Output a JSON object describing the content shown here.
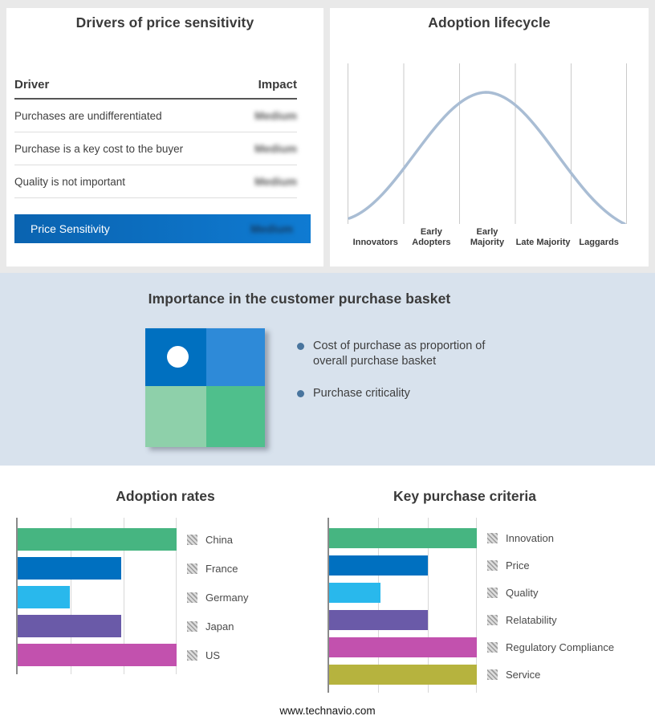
{
  "page": {
    "footer_url": "www.technavio.com",
    "background": "#e9e9e9",
    "band_background": "#d8e2ed",
    "accent_blue": "#0070c0"
  },
  "drivers_panel": {
    "title": "Drivers of price sensitivity",
    "columns": {
      "driver": "Driver",
      "impact": "Impact"
    },
    "impact_values_blurred": true,
    "rows": [
      {
        "driver": "Purchases are undifferentiated",
        "impact": "Medium"
      },
      {
        "driver": "Purchase is a key cost to the buyer",
        "impact": "Medium"
      },
      {
        "driver": "Quality is not important",
        "impact": "Medium"
      }
    ],
    "summary_row": {
      "label": "Price Sensitivity",
      "impact": "Medium"
    }
  },
  "lifecycle_panel": {
    "title": "Adoption lifecycle",
    "stages": [
      "Innovators",
      "Early Adopters",
      "Early Majority",
      "Late Majority",
      "Laggards"
    ],
    "curve_color": "#a9bdd4"
  },
  "basket_panel": {
    "title": "Importance in the customer purchase basket",
    "bullets": [
      "Cost of purchase as proportion of overall purchase basket",
      "Purchase criticality"
    ],
    "quadrant_colors": [
      "#0070c0",
      "#2e8ad8",
      "#8ed0aa",
      "#4fbf8c"
    ]
  },
  "chart_data": [
    {
      "type": "table",
      "title": "Drivers of price sensitivity",
      "columns": [
        "Driver",
        "Impact"
      ],
      "rows": [
        [
          "Purchases are undifferentiated",
          "Medium"
        ],
        [
          "Purchase is a key cost to the buyer",
          "Medium"
        ],
        [
          "Quality is not important",
          "Medium"
        ],
        [
          "Price Sensitivity",
          "Medium"
        ]
      ]
    },
    {
      "type": "area",
      "title": "Adoption lifecycle",
      "shape": "bell-curve",
      "grid": true,
      "categories": [
        "Innovators",
        "Early Adopters",
        "Early Majority",
        "Late Majority",
        "Laggards"
      ],
      "y_normalized": [
        0.05,
        0.5,
        1.0,
        0.5,
        0.05
      ]
    },
    {
      "type": "bar",
      "orientation": "horizontal",
      "title": "Adoption rates",
      "categories": [
        "China",
        "France",
        "Germany",
        "Japan",
        "US"
      ],
      "values": [
        100,
        65,
        33,
        65,
        100
      ],
      "xlim": [
        0,
        100
      ],
      "colors": [
        "#46b581",
        "#0070c0",
        "#29b8ec",
        "#6a5aa8",
        "#c251ae"
      ],
      "legend_position": "right",
      "grid": true
    },
    {
      "type": "bar",
      "orientation": "horizontal",
      "title": "Key purchase criteria",
      "categories": [
        "Innovation",
        "Price",
        "Quality",
        "Relatability",
        "Regulatory Compliance",
        "Service"
      ],
      "values": [
        100,
        67,
        35,
        67,
        100,
        100
      ],
      "xlim": [
        0,
        100
      ],
      "colors": [
        "#46b581",
        "#0070c0",
        "#29b8ec",
        "#6a5aa8",
        "#c251ae",
        "#b6b33e"
      ],
      "legend_position": "right",
      "grid": true
    }
  ]
}
